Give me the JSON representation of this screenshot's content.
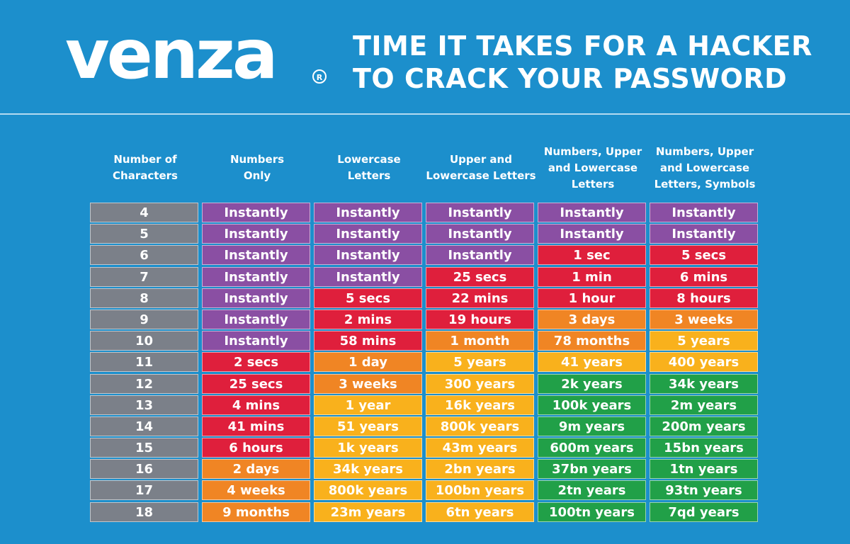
{
  "brand": {
    "name": "venza",
    "trademark": "®"
  },
  "headline": {
    "line1": "TIME IT TAKES FOR A HACKER",
    "line2": "TO CRACK YOUR PASSWORD"
  },
  "colors": {
    "background": "#1c8fcc",
    "number_cell": "#7b8089",
    "purple": "#8a4fa3",
    "red": "#df1f3c",
    "orange": "#f08524",
    "yellow": "#f9b11c",
    "green": "#21a048"
  },
  "table": {
    "headers": [
      "Number of\nCharacters",
      "Numbers\nOnly",
      "Lowercase\nLetters",
      "Upper and\nLowercase Letters",
      "Numbers, Upper\nand Lowercase\nLetters",
      "Numbers, Upper\nand Lowercase\nLetters, Symbols"
    ],
    "rows": [
      {
        "chars": "4",
        "cells": [
          [
            "Instantly",
            "purple"
          ],
          [
            "Instantly",
            "purple"
          ],
          [
            "Instantly",
            "purple"
          ],
          [
            "Instantly",
            "purple"
          ],
          [
            "Instantly",
            "purple"
          ]
        ]
      },
      {
        "chars": "5",
        "cells": [
          [
            "Instantly",
            "purple"
          ],
          [
            "Instantly",
            "purple"
          ],
          [
            "Instantly",
            "purple"
          ],
          [
            "Instantly",
            "purple"
          ],
          [
            "Instantly",
            "purple"
          ]
        ]
      },
      {
        "chars": "6",
        "cells": [
          [
            "Instantly",
            "purple"
          ],
          [
            "Instantly",
            "purple"
          ],
          [
            "Instantly",
            "purple"
          ],
          [
            "1 sec",
            "red"
          ],
          [
            "5 secs",
            "red"
          ]
        ]
      },
      {
        "chars": "7",
        "cells": [
          [
            "Instantly",
            "purple"
          ],
          [
            "Instantly",
            "purple"
          ],
          [
            "25 secs",
            "red"
          ],
          [
            "1 min",
            "red"
          ],
          [
            "6 mins",
            "red"
          ]
        ]
      },
      {
        "chars": "8",
        "cells": [
          [
            "Instantly",
            "purple"
          ],
          [
            "5 secs",
            "red"
          ],
          [
            "22 mins",
            "red"
          ],
          [
            "1 hour",
            "red"
          ],
          [
            "8 hours",
            "red"
          ]
        ]
      },
      {
        "chars": "9",
        "cells": [
          [
            "Instantly",
            "purple"
          ],
          [
            "2 mins",
            "red"
          ],
          [
            "19 hours",
            "red"
          ],
          [
            "3 days",
            "orange"
          ],
          [
            "3 weeks",
            "orange"
          ]
        ]
      },
      {
        "chars": "10",
        "cells": [
          [
            "Instantly",
            "purple"
          ],
          [
            "58 mins",
            "red"
          ],
          [
            "1 month",
            "orange"
          ],
          [
            "78 months",
            "orange"
          ],
          [
            "5 years",
            "yellow"
          ]
        ]
      },
      {
        "chars": "11",
        "cells": [
          [
            "2 secs",
            "red"
          ],
          [
            "1 day",
            "orange"
          ],
          [
            "5 years",
            "yellow"
          ],
          [
            "41 years",
            "yellow"
          ],
          [
            "400 years",
            "yellow"
          ]
        ]
      },
      {
        "chars": "12",
        "cells": [
          [
            "25 secs",
            "red"
          ],
          [
            "3 weeks",
            "orange"
          ],
          [
            "300 years",
            "yellow"
          ],
          [
            "2k years",
            "green"
          ],
          [
            "34k years",
            "green"
          ]
        ]
      },
      {
        "chars": "13",
        "cells": [
          [
            "4 mins",
            "red"
          ],
          [
            "1 year",
            "yellow"
          ],
          [
            "16k years",
            "yellow"
          ],
          [
            "100k years",
            "green"
          ],
          [
            "2m years",
            "green"
          ]
        ]
      },
      {
        "chars": "14",
        "cells": [
          [
            "41 mins",
            "red"
          ],
          [
            "51 years",
            "yellow"
          ],
          [
            "800k years",
            "yellow"
          ],
          [
            "9m years",
            "green"
          ],
          [
            "200m years",
            "green"
          ]
        ]
      },
      {
        "chars": "15",
        "cells": [
          [
            "6 hours",
            "red"
          ],
          [
            "1k years",
            "yellow"
          ],
          [
            "43m years",
            "yellow"
          ],
          [
            "600m years",
            "green"
          ],
          [
            "15bn years",
            "green"
          ]
        ]
      },
      {
        "chars": "16",
        "cells": [
          [
            "2 days",
            "orange"
          ],
          [
            "34k years",
            "yellow"
          ],
          [
            "2bn years",
            "yellow"
          ],
          [
            "37bn years",
            "green"
          ],
          [
            "1tn years",
            "green"
          ]
        ]
      },
      {
        "chars": "17",
        "cells": [
          [
            "4 weeks",
            "orange"
          ],
          [
            "800k years",
            "yellow"
          ],
          [
            "100bn years",
            "yellow"
          ],
          [
            "2tn years",
            "green"
          ],
          [
            "93tn years",
            "green"
          ]
        ]
      },
      {
        "chars": "18",
        "cells": [
          [
            "9 months",
            "orange"
          ],
          [
            "23m years",
            "yellow"
          ],
          [
            "6tn years",
            "yellow"
          ],
          [
            "100tn years",
            "green"
          ],
          [
            "7qd years",
            "green"
          ]
        ]
      }
    ]
  }
}
